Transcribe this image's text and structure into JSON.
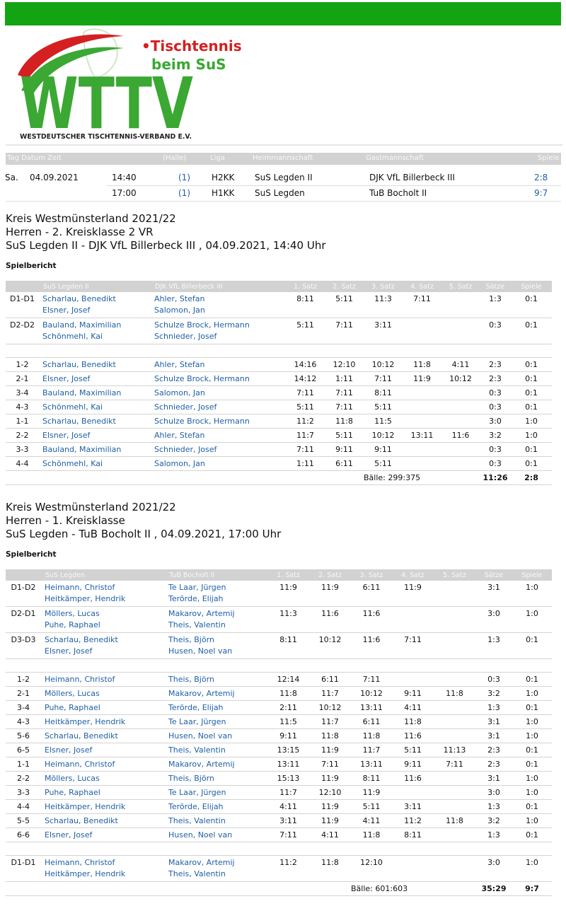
{
  "header": {
    "brand_line1": "•Tischtennis",
    "brand_line2": "beim SuS",
    "logo": "WTTV",
    "federation": "WESTDEUTSCHER TISCHTENNIS-VERBAND E.V."
  },
  "schedule": {
    "headers": [
      "Tag Datum Zeit",
      "(Halle)",
      "Liga",
      "Heimmannschaft",
      "Gastmannschaft",
      "Spiele"
    ],
    "rows": [
      {
        "day": "Sa.",
        "date": "04.09.2021",
        "time": "14:40",
        "hall": "(1)",
        "league": "H2KK",
        "home": "SuS Legden II",
        "guest": "DJK VfL Billerbeck III",
        "games": "2:8"
      },
      {
        "time": "17:00",
        "hall": "(1)",
        "league": "H1KK",
        "home": "SuS Legden",
        "guest": "TuB Bocholt II",
        "games": "9:7"
      }
    ]
  },
  "reports": [
    {
      "heading": [
        "Kreis Westmünsterland 2021/22",
        "Herren - 2. Kreisklasse 2 VR",
        "SuS Legden II - DJK VfL Billerbeck III , 04.09.2021, 14:40 Uhr"
      ],
      "section": "Spielbericht",
      "headers": [
        "SuS Legden II",
        "DJK VfL Billerbeck III",
        "1. Satz",
        "2. Satz",
        "3. Satz",
        "4. Satz",
        "5. Satz",
        "Sätze",
        "Spiele"
      ],
      "groups": [
        [
          {
            "pos": "D1-D1",
            "home": [
              "Scharlau, Benedikt",
              "Elsner, Josef"
            ],
            "guest": [
              "Ahler, Stefan",
              "Salomon, Jan"
            ],
            "sets": [
              "8:11",
              "5:11",
              "11:3",
              "7:11"
            ],
            "result": "1:3",
            "games": "0:1"
          },
          {
            "pos": "D2-D2",
            "home": [
              "Bauland, Maximilian",
              "Schönmehl, Kai"
            ],
            "guest": [
              "Schulze Brock, Hermann",
              "Schnieder, Josef"
            ],
            "sets": [
              "5:11",
              "7:11",
              "3:11"
            ],
            "result": "0:3",
            "games": "0:1"
          }
        ],
        [
          {
            "pos": "1-2",
            "home": [
              "Scharlau, Benedikt"
            ],
            "guest": [
              "Ahler, Stefan"
            ],
            "sets": [
              "14:16",
              "12:10",
              "10:12",
              "11:8",
              "4:11"
            ],
            "result": "2:3",
            "games": "0:1"
          },
          {
            "pos": "2-1",
            "home": [
              "Elsner, Josef"
            ],
            "guest": [
              "Schulze Brock, Hermann"
            ],
            "sets": [
              "14:12",
              "1:11",
              "7:11",
              "11:9",
              "10:12"
            ],
            "result": "2:3",
            "games": "0:1"
          },
          {
            "pos": "3-4",
            "home": [
              "Bauland, Maximilian"
            ],
            "guest": [
              "Salomon, Jan"
            ],
            "sets": [
              "7:11",
              "7:11",
              "8:11"
            ],
            "result": "0:3",
            "games": "0:1"
          },
          {
            "pos": "4-3",
            "home": [
              "Schönmehl, Kai"
            ],
            "guest": [
              "Schnieder, Josef"
            ],
            "sets": [
              "5:11",
              "7:11",
              "5:11"
            ],
            "result": "0:3",
            "games": "0:1"
          },
          {
            "pos": "1-1",
            "home": [
              "Scharlau, Benedikt"
            ],
            "guest": [
              "Schulze Brock, Hermann"
            ],
            "sets": [
              "11:2",
              "11:8",
              "11:5"
            ],
            "result": "3:0",
            "games": "1:0"
          },
          {
            "pos": "2-2",
            "home": [
              "Elsner, Josef"
            ],
            "guest": [
              "Ahler, Stefan"
            ],
            "sets": [
              "11:7",
              "5:11",
              "10:12",
              "13:11",
              "11:6"
            ],
            "result": "3:2",
            "games": "1:0"
          },
          {
            "pos": "3-3",
            "home": [
              "Bauland, Maximilian"
            ],
            "guest": [
              "Schnieder, Josef"
            ],
            "sets": [
              "7:11",
              "9:11",
              "9:11"
            ],
            "result": "0:3",
            "games": "0:1"
          },
          {
            "pos": "4-4",
            "home": [
              "Schönmehl, Kai"
            ],
            "guest": [
              "Salomon, Jan"
            ],
            "sets": [
              "1:11",
              "6:11",
              "5:11"
            ],
            "result": "0:3",
            "games": "0:1"
          }
        ]
      ],
      "footer": {
        "balls": "Bälle: 299:375",
        "sets": "11:26",
        "games": "2:8"
      }
    },
    {
      "heading": [
        "Kreis Westmünsterland 2021/22",
        "Herren - 1. Kreisklasse",
        "SuS Legden - TuB Bocholt II , 04.09.2021, 17:00 Uhr"
      ],
      "section": "Spielbericht",
      "headers": [
        "SuS Legden",
        "TuB Bocholt II",
        "1. Satz",
        "2. Satz",
        "3. Satz",
        "4. Satz",
        "5. Satz",
        "Sätze",
        "Spiele"
      ],
      "groups": [
        [
          {
            "pos": "D1-D2",
            "home": [
              "Heimann, Christof",
              "Heitkämper, Hendrik"
            ],
            "guest": [
              "Te Laar, Jürgen",
              "Terörde, Elijah"
            ],
            "sets": [
              "11:9",
              "11:9",
              "6:11",
              "11:9"
            ],
            "result": "3:1",
            "games": "1:0"
          },
          {
            "pos": "D2-D1",
            "home": [
              "Möllers, Lucas",
              "Puhe, Raphael"
            ],
            "guest": [
              "Makarov, Artemij",
              "Theis, Valentin"
            ],
            "sets": [
              "11:3",
              "11:6",
              "11:6"
            ],
            "result": "3:0",
            "games": "1:0"
          },
          {
            "pos": "D3-D3",
            "home": [
              "Scharlau, Benedikt",
              "Elsner, Josef"
            ],
            "guest": [
              "Theis, Björn",
              "Husen, Noel van"
            ],
            "sets": [
              "8:11",
              "10:12",
              "11:6",
              "7:11"
            ],
            "result": "1:3",
            "games": "0:1"
          }
        ],
        [
          {
            "pos": "1-2",
            "home": [
              "Heimann, Christof"
            ],
            "guest": [
              "Theis, Björn"
            ],
            "sets": [
              "12:14",
              "6:11",
              "7:11"
            ],
            "result": "0:3",
            "games": "0:1"
          },
          {
            "pos": "2-1",
            "home": [
              "Möllers, Lucas"
            ],
            "guest": [
              "Makarov, Artemij"
            ],
            "sets": [
              "11:8",
              "11:7",
              "10:12",
              "9:11",
              "11:8"
            ],
            "result": "3:2",
            "games": "1:0"
          },
          {
            "pos": "3-4",
            "home": [
              "Puhe, Raphael"
            ],
            "guest": [
              "Terörde, Elijah"
            ],
            "sets": [
              "2:11",
              "10:12",
              "13:11",
              "4:11"
            ],
            "result": "1:3",
            "games": "0:1"
          },
          {
            "pos": "4-3",
            "home": [
              "Heitkämper, Hendrik"
            ],
            "guest": [
              "Te Laar, Jürgen"
            ],
            "sets": [
              "11:5",
              "11:7",
              "6:11",
              "11:8"
            ],
            "result": "3:1",
            "games": "1:0"
          },
          {
            "pos": "5-6",
            "home": [
              "Scharlau, Benedikt"
            ],
            "guest": [
              "Husen, Noel van"
            ],
            "sets": [
              "9:11",
              "11:8",
              "11:8",
              "11:6"
            ],
            "result": "3:1",
            "games": "1:0"
          },
          {
            "pos": "6-5",
            "home": [
              "Elsner, Josef"
            ],
            "guest": [
              "Theis, Valentin"
            ],
            "sets": [
              "13:15",
              "11:9",
              "11:7",
              "5:11",
              "11:13"
            ],
            "result": "2:3",
            "games": "0:1"
          },
          {
            "pos": "1-1",
            "home": [
              "Heimann, Christof"
            ],
            "guest": [
              "Makarov, Artemij"
            ],
            "sets": [
              "13:11",
              "7:11",
              "13:11",
              "9:11",
              "7:11"
            ],
            "result": "2:3",
            "games": "0:1"
          },
          {
            "pos": "2-2",
            "home": [
              "Möllers, Lucas"
            ],
            "guest": [
              "Theis, Björn"
            ],
            "sets": [
              "15:13",
              "11:9",
              "8:11",
              "11:6"
            ],
            "result": "3:1",
            "games": "1:0"
          },
          {
            "pos": "3-3",
            "home": [
              "Puhe, Raphael"
            ],
            "guest": [
              "Te Laar, Jürgen"
            ],
            "sets": [
              "11:7",
              "12:10",
              "11:9"
            ],
            "result": "3:0",
            "games": "1:0"
          },
          {
            "pos": "4-4",
            "home": [
              "Heitkämper, Hendrik"
            ],
            "guest": [
              "Terörde, Elijah"
            ],
            "sets": [
              "4:11",
              "11:9",
              "5:11",
              "3:11"
            ],
            "result": "1:3",
            "games": "0:1"
          },
          {
            "pos": "5-5",
            "home": [
              "Scharlau, Benedikt"
            ],
            "guest": [
              "Theis, Valentin"
            ],
            "sets": [
              "3:11",
              "11:9",
              "4:11",
              "11:2",
              "11:8"
            ],
            "result": "3:2",
            "games": "1:0"
          },
          {
            "pos": "6-6",
            "home": [
              "Elsner, Josef"
            ],
            "guest": [
              "Husen, Noel van"
            ],
            "sets": [
              "7:11",
              "4:11",
              "11:8",
              "8:11"
            ],
            "result": "1:3",
            "games": "0:1"
          }
        ],
        [
          {
            "pos": "D1-D1",
            "home": [
              "Heimann, Christof",
              "Heitkämper, Hendrik"
            ],
            "guest": [
              "Makarov, Artemij",
              "Theis, Valentin"
            ],
            "sets": [
              "11:2",
              "11:8",
              "12:10"
            ],
            "result": "3:0",
            "games": "1:0"
          }
        ]
      ],
      "footer": {
        "balls": "Bälle: 601:603",
        "sets": "35:29",
        "games": "9:7"
      }
    }
  ]
}
